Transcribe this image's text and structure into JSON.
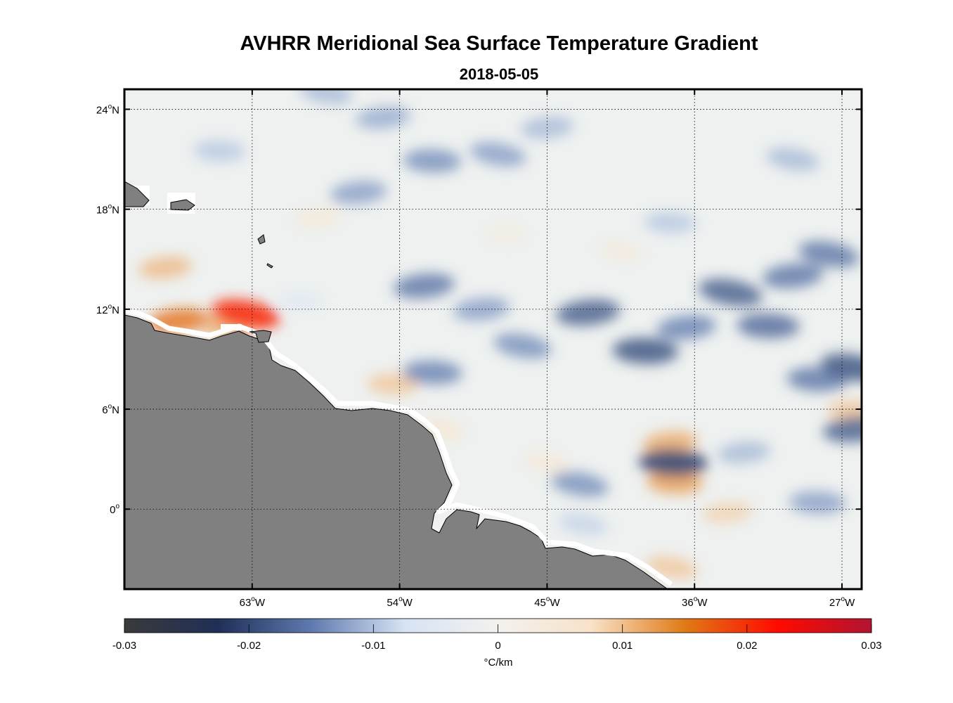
{
  "figure": {
    "title": "AVHRR Meridional Sea Surface Temperature Gradient",
    "subtitle": "2018-05-05"
  },
  "map": {
    "lon_range": [
      -70.8,
      -25.8
    ],
    "lat_range": [
      -4.8,
      25.2
    ],
    "lon_ticks": [
      {
        "value": -63,
        "deg": "63",
        "hemi": "W"
      },
      {
        "value": -54,
        "deg": "54",
        "hemi": "W"
      },
      {
        "value": -45,
        "deg": "45",
        "hemi": "W"
      },
      {
        "value": -36,
        "deg": "36",
        "hemi": "W"
      },
      {
        "value": -27,
        "deg": "27",
        "hemi": "W"
      }
    ],
    "lat_ticks": [
      {
        "value": 24,
        "deg": "24",
        "hemi": "N"
      },
      {
        "value": 18,
        "deg": "18",
        "hemi": "N"
      },
      {
        "value": 12,
        "deg": "12",
        "hemi": "N"
      },
      {
        "value": 6,
        "deg": "6",
        "hemi": "N"
      },
      {
        "value": 0,
        "deg": "0",
        "hemi": ""
      }
    ],
    "land_color": "#808080",
    "ocean_background": "#eef1f0",
    "grid": "dotted"
  },
  "chart_data": {
    "type": "heatmap",
    "variable": "meridional SST gradient",
    "units": "°C/km",
    "clim": [
      -0.03,
      0.03
    ],
    "colormap_stops": [
      "#3a3a3c",
      "#1f2f57",
      "#5e7aae",
      "#d6e3f4",
      "#f3f1ee",
      "#f8e2c8",
      "#e07a16",
      "#ff0a00",
      "#b11431"
    ],
    "anomalies": [
      {
        "lon": -67.5,
        "lat": 11.3,
        "value": 0.016
      },
      {
        "lon": -64.5,
        "lat": 11.0,
        "value": 0.012
      },
      {
        "lon": -63.4,
        "lat": 11.7,
        "value": 0.021
      },
      {
        "lon": -68.3,
        "lat": 14.5,
        "value": 0.011
      },
      {
        "lon": -54.4,
        "lat": 7.5,
        "value": 0.01
      },
      {
        "lon": -51.5,
        "lat": 4.8,
        "value": 0.007
      },
      {
        "lon": -37.5,
        "lat": 4.0,
        "value": 0.012
      },
      {
        "lon": -37.2,
        "lat": 1.6,
        "value": 0.013
      },
      {
        "lon": -37.4,
        "lat": -3.5,
        "value": 0.01
      },
      {
        "lon": -34.0,
        "lat": -0.2,
        "value": 0.009
      },
      {
        "lon": -26.3,
        "lat": 5.9,
        "value": 0.01
      },
      {
        "lon": -45.0,
        "lat": 2.8,
        "value": 0.006
      },
      {
        "lon": -42.5,
        "lat": 11.8,
        "value": -0.018
      },
      {
        "lon": -39.0,
        "lat": 9.5,
        "value": -0.019
      },
      {
        "lon": -33.8,
        "lat": 13.0,
        "value": -0.018
      },
      {
        "lon": -30.0,
        "lat": 14.0,
        "value": -0.016
      },
      {
        "lon": -31.5,
        "lat": 11.0,
        "value": -0.017
      },
      {
        "lon": -27.8,
        "lat": 15.3,
        "value": -0.016
      },
      {
        "lon": -36.5,
        "lat": 10.9,
        "value": -0.015
      },
      {
        "lon": -28.5,
        "lat": 7.8,
        "value": -0.016
      },
      {
        "lon": -26.3,
        "lat": 8.5,
        "value": -0.019
      },
      {
        "lon": -26.2,
        "lat": 4.8,
        "value": -0.018
      },
      {
        "lon": -37.3,
        "lat": 2.8,
        "value": -0.021
      },
      {
        "lon": -43.0,
        "lat": 1.5,
        "value": -0.014
      },
      {
        "lon": -52.5,
        "lat": 13.4,
        "value": -0.016
      },
      {
        "lon": -52.0,
        "lat": 8.2,
        "value": -0.015
      },
      {
        "lon": -46.5,
        "lat": 9.8,
        "value": -0.014
      },
      {
        "lon": -49.0,
        "lat": 12.0,
        "value": -0.013
      },
      {
        "lon": -52.0,
        "lat": 20.9,
        "value": -0.014
      },
      {
        "lon": -48.0,
        "lat": 21.3,
        "value": -0.013
      },
      {
        "lon": -56.5,
        "lat": 19.0,
        "value": -0.013
      },
      {
        "lon": -65.0,
        "lat": 21.5,
        "value": -0.01
      },
      {
        "lon": -58.5,
        "lat": 25.0,
        "value": -0.011
      },
      {
        "lon": -55.0,
        "lat": 23.5,
        "value": -0.012
      },
      {
        "lon": -37.5,
        "lat": 17.2,
        "value": -0.01
      },
      {
        "lon": -30.0,
        "lat": 21.0,
        "value": -0.011
      },
      {
        "lon": -33.0,
        "lat": 3.4,
        "value": -0.011
      },
      {
        "lon": -28.5,
        "lat": 0.4,
        "value": -0.013
      },
      {
        "lon": -42.8,
        "lat": -0.9,
        "value": -0.009
      },
      {
        "lon": -45.0,
        "lat": 22.9,
        "value": -0.011
      },
      {
        "lon": -60.0,
        "lat": 12.5,
        "value": -0.006
      },
      {
        "lon": -40.5,
        "lat": 15.5,
        "value": 0.005
      },
      {
        "lon": -59.0,
        "lat": 17.5,
        "value": 0.006
      },
      {
        "lon": -47.5,
        "lat": 16.5,
        "value": 0.004
      }
    ]
  },
  "colorbar": {
    "tick_labels": [
      "-0.03",
      "-0.02",
      "-0.01",
      "0",
      "0.01",
      "0.02",
      "0.03"
    ],
    "label": "°C/km"
  }
}
